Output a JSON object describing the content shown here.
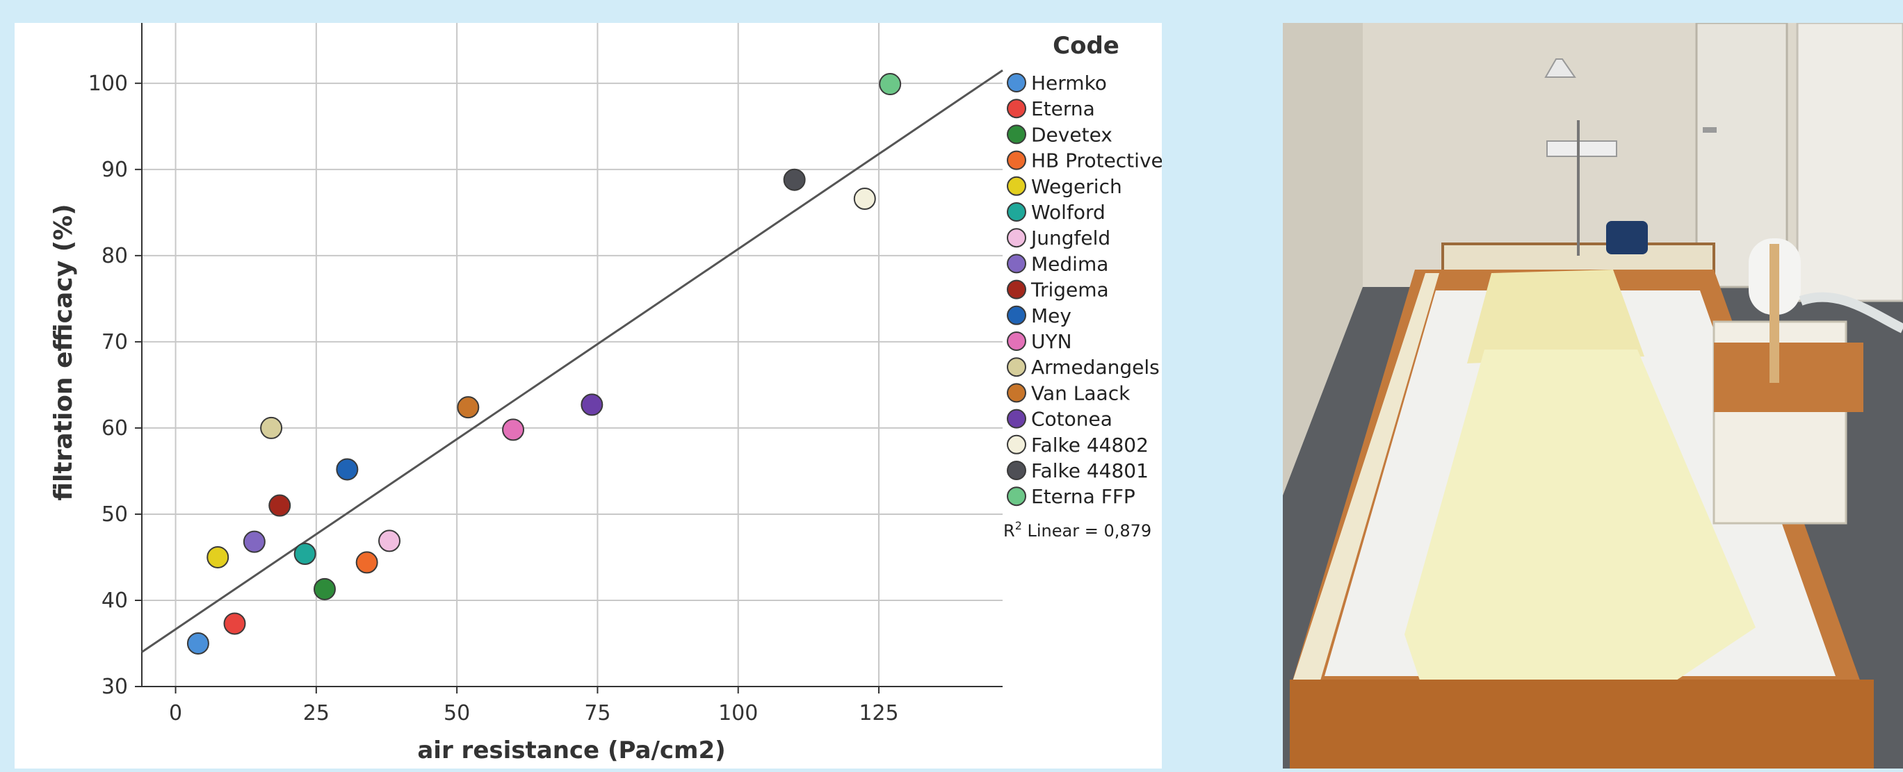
{
  "chart_data": {
    "type": "scatter",
    "title": "",
    "xlabel": "air resistance (Pa/cm2)",
    "ylabel": "filtration efficacy (%)",
    "xlim": [
      -6,
      147
    ],
    "ylim": [
      30,
      107
    ],
    "x_ticks": [
      "0",
      "25",
      "50",
      "75",
      "100",
      "125"
    ],
    "y_ticks": [
      "30",
      "40",
      "50",
      "60",
      "70",
      "80",
      "90",
      "100"
    ],
    "grid": true,
    "legend_title": "Code",
    "legend_position": "right",
    "fit_label_r": "R",
    "fit_label_sup": "2",
    "fit_label_rest": " Linear = 0,879",
    "fit_line": {
      "x": [
        -6,
        147
      ],
      "y": [
        34,
        101.5
      ]
    },
    "series": [
      {
        "name": "Hermko",
        "color": "#4a90d9",
        "x": 4,
        "y": 35
      },
      {
        "name": "Eterna",
        "color": "#e8443e",
        "x": 10.5,
        "y": 37.3
      },
      {
        "name": "Devetex",
        "color": "#2e8b3a",
        "x": 26.5,
        "y": 41.3
      },
      {
        "name": "HB Protective",
        "color": "#ef6a2a",
        "x": 34,
        "y": 44.4
      },
      {
        "name": "Wegerich",
        "color": "#e3cf1f",
        "x": 7.5,
        "y": 45
      },
      {
        "name": "Wolford",
        "color": "#1fa89a",
        "x": 23,
        "y": 45.4
      },
      {
        "name": "Jungfeld",
        "color": "#f1bee0",
        "x": 38,
        "y": 46.9
      },
      {
        "name": "Medima",
        "color": "#8167c1",
        "x": 14,
        "y": 46.8
      },
      {
        "name": "Trigema",
        "color": "#a3271c",
        "x": 18.5,
        "y": 51
      },
      {
        "name": "Mey",
        "color": "#1f63b5",
        "x": 30.5,
        "y": 55.2
      },
      {
        "name": "UYN",
        "color": "#e371b8",
        "x": 60,
        "y": 59.8
      },
      {
        "name": "Armedangels",
        "color": "#d6ce9b",
        "x": 17,
        "y": 60
      },
      {
        "name": "Van Laack",
        "color": "#c8752a",
        "x": 52,
        "y": 62.4
      },
      {
        "name": "Cotonea",
        "color": "#6b3fa8",
        "x": 74,
        "y": 62.7
      },
      {
        "name": "Falke 44802",
        "color": "#f3f0dc",
        "x": 122.5,
        "y": 86.6
      },
      {
        "name": "Falke 44801",
        "color": "#4e4f55",
        "x": 110,
        "y": 88.8
      },
      {
        "name": "Eterna FFP",
        "color": "#6cc788",
        "x": 127,
        "y": 99.9
      }
    ]
  },
  "photo": {
    "colors": {
      "wall": "#ddd8cc",
      "floor": "#5b5e62",
      "wood": "#b5692a",
      "sheet": "#f1f1ee",
      "duvet": "#f3f1c3"
    }
  }
}
